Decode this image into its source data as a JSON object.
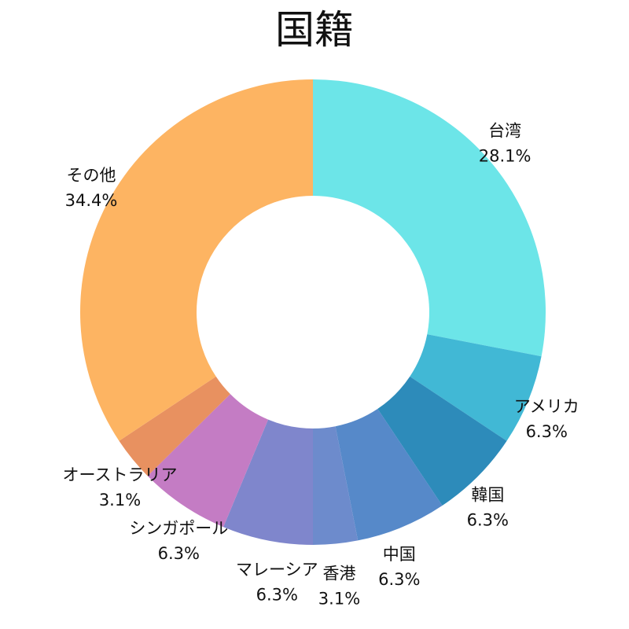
{
  "chart_data": {
    "type": "pie",
    "title": "国籍",
    "donut": true,
    "slices": [
      {
        "label": "台湾",
        "value": 28.1,
        "pct_label": "28.1%",
        "color": "#6ce5e8"
      },
      {
        "label": "アメリカ",
        "value": 6.3,
        "pct_label": "6.3%",
        "color": "#41b8d5"
      },
      {
        "label": "韓国",
        "value": 6.3,
        "pct_label": "6.3%",
        "color": "#2d8bba"
      },
      {
        "label": "中国",
        "value": 6.3,
        "pct_label": "6.3%",
        "color": "#5689c9"
      },
      {
        "label": "香港",
        "value": 3.1,
        "pct_label": "3.1%",
        "color": "#6d8bcc"
      },
      {
        "label": "マレーシア",
        "value": 6.3,
        "pct_label": "6.3%",
        "color": "#7f86cc"
      },
      {
        "label": "シンガポール",
        "value": 6.3,
        "pct_label": "6.3%",
        "color": "#c47cc4"
      },
      {
        "label": "オーストラリア",
        "value": 3.1,
        "pct_label": "3.1%",
        "color": "#e89160"
      },
      {
        "label": "その他",
        "value": 34.4,
        "pct_label": "34.4%",
        "color": "#fdb462"
      }
    ]
  }
}
